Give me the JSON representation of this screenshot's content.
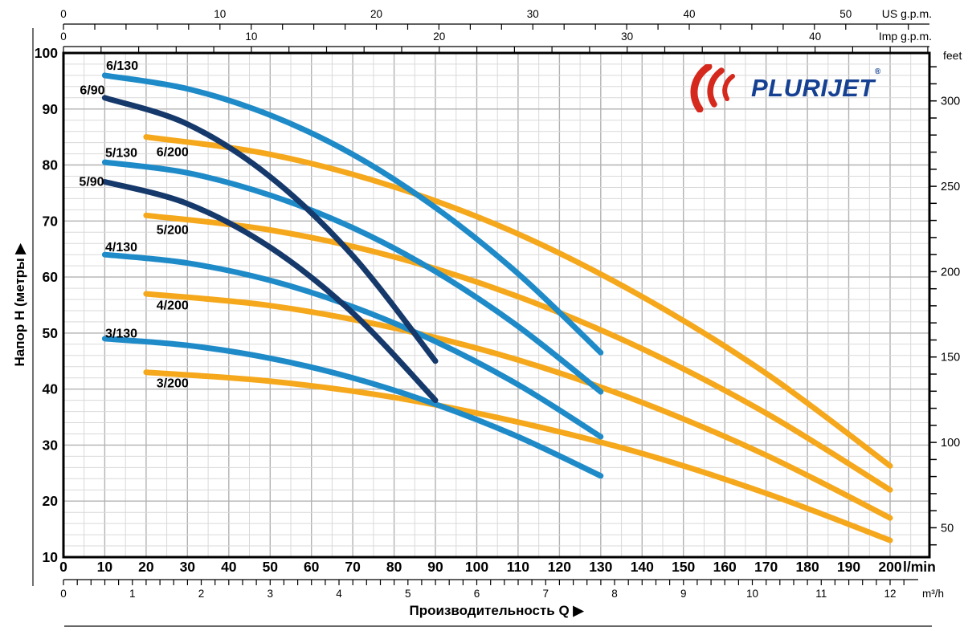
{
  "logo": {
    "text": "PLURIJET",
    "reg": "®"
  },
  "colors": {
    "lightblue": "#1e8bc8",
    "navy": "#16396b",
    "yellow": "#f5a81c",
    "grid_minor": "#d9d9d9",
    "grid_major": "#b2b2b2",
    "axis": "#000000",
    "frame": "#333333",
    "logo_red": "#d6291e",
    "logo_blue": "#164193"
  },
  "chart_data": {
    "type": "line",
    "xlabel": "Производительность Q  ▶",
    "ylabel": "Напор H (метры  ▶",
    "x_primary_axis": {
      "unit": "l/min",
      "min": 0,
      "max": 200,
      "label_step": 10
    },
    "x_secondary_axes": [
      {
        "unit": "US g.p.m.",
        "lmin_per_unit": 3.7854,
        "tick_step": 2,
        "label_step": 10,
        "tick_max": 54
      },
      {
        "unit": "Imp g.p.m.",
        "lmin_per_unit": 4.5461,
        "tick_step": 2,
        "label_step": 10,
        "tick_max": 46
      },
      {
        "unit": "m³/h",
        "lmin_per_unit": 16.6667,
        "tick_step": 0.2,
        "label_step": 1,
        "tick_max": 12.2
      }
    ],
    "y_primary_axis": {
      "unit": "метры",
      "min": 10,
      "max": 100,
      "label_step": 10
    },
    "y_secondary_axis": {
      "unit": "feet",
      "m_per_unit": 0.3048,
      "tick_step": 10,
      "label_step": 50,
      "tick_min": 40,
      "tick_max": 320
    },
    "grid": {
      "x_minor_step_lmin": 5,
      "x_major_step_lmin": 10,
      "y_minor_step_m": 2,
      "y_major_step_m": 10
    },
    "series": [
      {
        "name": "6/130",
        "color": "lightblue",
        "label_pos": [
          14.2,
          97.8
        ],
        "points": [
          [
            10,
            96
          ],
          [
            30,
            93.6
          ],
          [
            50,
            88.9
          ],
          [
            70,
            81.9
          ],
          [
            90,
            72.4
          ],
          [
            110,
            60.6
          ],
          [
            130,
            46.5
          ]
        ]
      },
      {
        "name": "6/90",
        "color": "navy",
        "label_pos": [
          7.0,
          93.4
        ],
        "points": [
          [
            10,
            92
          ],
          [
            30,
            87.3
          ],
          [
            50,
            77.9
          ],
          [
            70,
            63.8
          ],
          [
            90,
            45
          ]
        ]
      },
      {
        "name": "6/200",
        "color": "yellow",
        "label_pos": [
          26.4,
          82.4
        ],
        "points": [
          [
            20,
            85
          ],
          [
            50,
            81.9
          ],
          [
            80,
            76.1
          ],
          [
            110,
            67.7
          ],
          [
            140,
            56.5
          ],
          [
            170,
            42.8
          ],
          [
            200,
            26.3
          ]
        ]
      },
      {
        "name": "5/130",
        "color": "lightblue",
        "label_pos": [
          14.0,
          82.2
        ],
        "points": [
          [
            10,
            80.5
          ],
          [
            30,
            78.6
          ],
          [
            50,
            74.6
          ],
          [
            70,
            68.8
          ],
          [
            90,
            61.0
          ],
          [
            110,
            51.2
          ],
          [
            130,
            39.5
          ]
        ]
      },
      {
        "name": "5/90",
        "color": "navy",
        "label_pos": [
          6.8,
          77.1
        ],
        "points": [
          [
            10,
            77
          ],
          [
            30,
            73.1
          ],
          [
            50,
            65.3
          ],
          [
            70,
            53.6
          ],
          [
            90,
            38
          ]
        ]
      },
      {
        "name": "5/200",
        "color": "yellow",
        "label_pos": [
          26.4,
          68.5
        ],
        "points": [
          [
            20,
            71
          ],
          [
            50,
            68.4
          ],
          [
            80,
            63.6
          ],
          [
            110,
            56.5
          ],
          [
            140,
            47.2
          ],
          [
            170,
            35.7
          ],
          [
            200,
            22
          ]
        ]
      },
      {
        "name": "4/130",
        "color": "lightblue",
        "label_pos": [
          14.0,
          65.4
        ],
        "points": [
          [
            10,
            64
          ],
          [
            30,
            62.5
          ],
          [
            50,
            59.4
          ],
          [
            70,
            54.7
          ],
          [
            90,
            48.5
          ],
          [
            110,
            40.8
          ],
          [
            130,
            31.5
          ]
        ]
      },
      {
        "name": "4/200",
        "color": "yellow",
        "label_pos": [
          26.4,
          55.0
        ],
        "points": [
          [
            20,
            57
          ],
          [
            50,
            54.9
          ],
          [
            80,
            50.9
          ],
          [
            110,
            45.2
          ],
          [
            140,
            37.6
          ],
          [
            170,
            28.2
          ],
          [
            200,
            17
          ]
        ]
      },
      {
        "name": "3/130",
        "color": "lightblue",
        "label_pos": [
          14.0,
          50.0
        ],
        "points": [
          [
            10,
            49
          ],
          [
            30,
            47.8
          ],
          [
            50,
            45.5
          ],
          [
            70,
            42.0
          ],
          [
            90,
            37.3
          ],
          [
            110,
            31.5
          ],
          [
            130,
            24.5
          ]
        ]
      },
      {
        "name": "3/200",
        "color": "yellow",
        "label_pos": [
          26.4,
          41.1
        ],
        "points": [
          [
            20,
            43
          ],
          [
            50,
            41.4
          ],
          [
            80,
            38.5
          ],
          [
            110,
            34.1
          ],
          [
            140,
            28.5
          ],
          [
            170,
            21.4
          ],
          [
            200,
            13
          ]
        ]
      }
    ]
  }
}
